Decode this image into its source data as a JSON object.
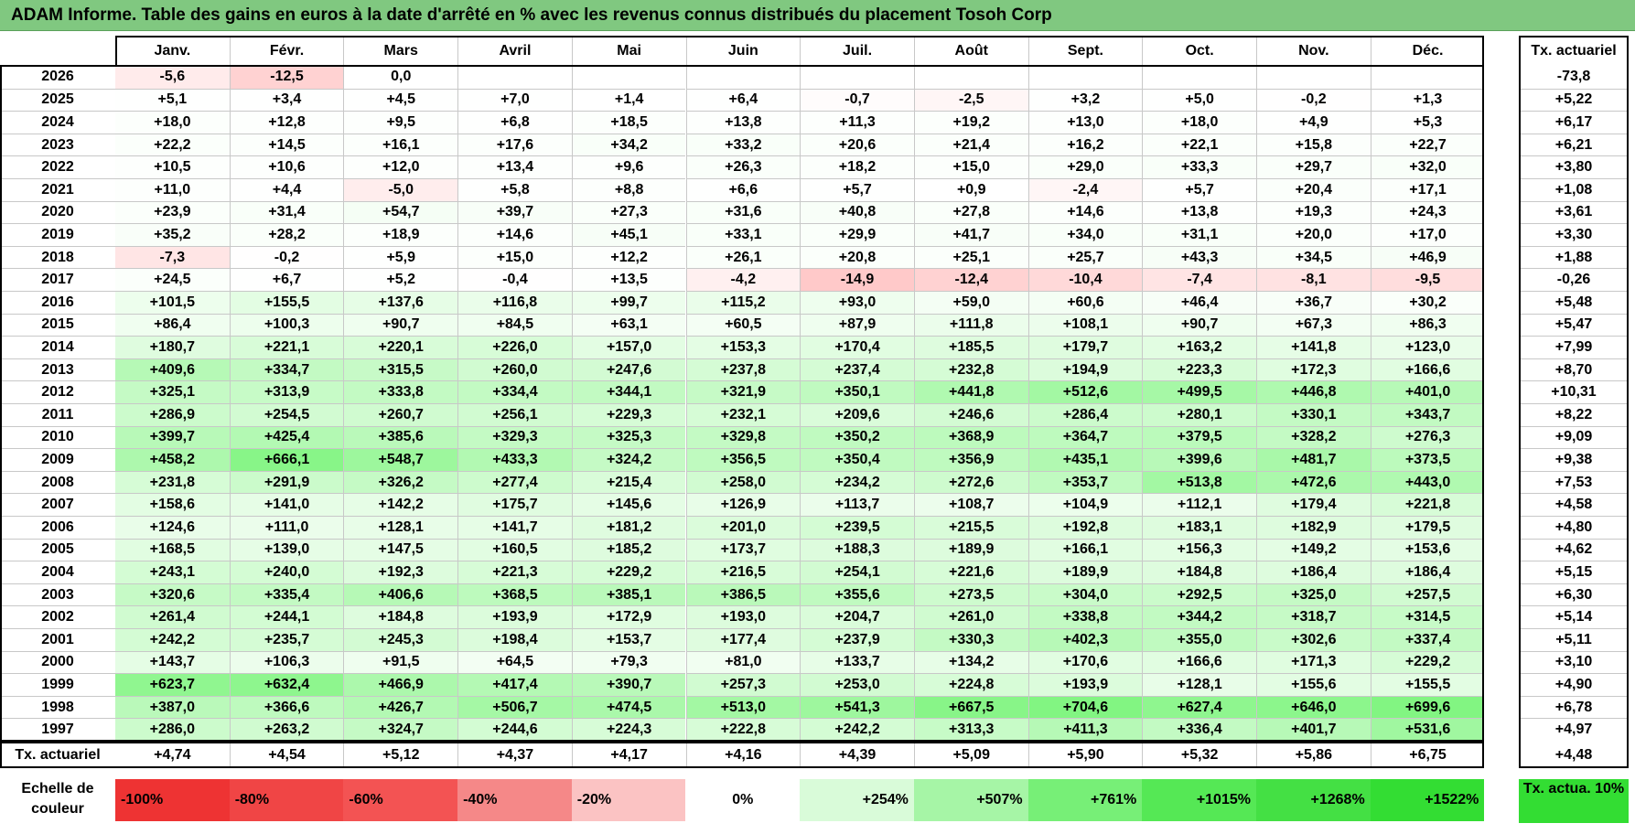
{
  "title": "ADAM Informe. Table des gains en euros à la date d'arrêté en % avec les revenus connus distribués du placement Tosoh Corp",
  "chart_data": {
    "type": "table",
    "columns": [
      "Janv.",
      "Févr.",
      "Mars",
      "Avril",
      "Mai",
      "Juin",
      "Juil.",
      "Août",
      "Sept.",
      "Oct.",
      "Nov.",
      "Déc."
    ],
    "total_column_label": "Tx. actuariel",
    "rows": [
      {
        "year": "2026",
        "values": [
          "-5,6",
          "-12,5",
          "0,0",
          "",
          "",
          "",
          "",
          "",
          "",
          "",
          "",
          ""
        ],
        "tx": "-73,8"
      },
      {
        "year": "2025",
        "values": [
          "+5,1",
          "+3,4",
          "+4,5",
          "+7,0",
          "+1,4",
          "+6,4",
          "-0,7",
          "-2,5",
          "+3,2",
          "+5,0",
          "-0,2",
          "+1,3"
        ],
        "tx": "+5,22"
      },
      {
        "year": "2024",
        "values": [
          "+18,0",
          "+12,8",
          "+9,5",
          "+6,8",
          "+18,5",
          "+13,8",
          "+11,3",
          "+19,2",
          "+13,0",
          "+18,0",
          "+4,9",
          "+5,3"
        ],
        "tx": "+6,17"
      },
      {
        "year": "2023",
        "values": [
          "+22,2",
          "+14,5",
          "+16,1",
          "+17,6",
          "+34,2",
          "+33,2",
          "+20,6",
          "+21,4",
          "+16,2",
          "+22,1",
          "+15,8",
          "+22,7"
        ],
        "tx": "+6,21"
      },
      {
        "year": "2022",
        "values": [
          "+10,5",
          "+10,6",
          "+12,0",
          "+13,4",
          "+9,6",
          "+26,3",
          "+18,2",
          "+15,0",
          "+29,0",
          "+33,3",
          "+29,7",
          "+32,0"
        ],
        "tx": "+3,80"
      },
      {
        "year": "2021",
        "values": [
          "+11,0",
          "+4,4",
          "-5,0",
          "+5,8",
          "+8,8",
          "+6,6",
          "+5,7",
          "+0,9",
          "-2,4",
          "+5,7",
          "+20,4",
          "+17,1"
        ],
        "tx": "+1,08"
      },
      {
        "year": "2020",
        "values": [
          "+23,9",
          "+31,4",
          "+54,7",
          "+39,7",
          "+27,3",
          "+31,6",
          "+40,8",
          "+27,8",
          "+14,6",
          "+13,8",
          "+19,3",
          "+24,3"
        ],
        "tx": "+3,61"
      },
      {
        "year": "2019",
        "values": [
          "+35,2",
          "+28,2",
          "+18,9",
          "+14,6",
          "+45,1",
          "+33,1",
          "+29,9",
          "+41,7",
          "+34,0",
          "+31,1",
          "+20,0",
          "+17,0"
        ],
        "tx": "+3,30"
      },
      {
        "year": "2018",
        "values": [
          "-7,3",
          "-0,2",
          "+5,9",
          "+15,0",
          "+12,2",
          "+26,1",
          "+20,8",
          "+25,1",
          "+25,7",
          "+43,3",
          "+34,5",
          "+46,9"
        ],
        "tx": "+1,88"
      },
      {
        "year": "2017",
        "values": [
          "+24,5",
          "+6,7",
          "+5,2",
          "-0,4",
          "+13,5",
          "-4,2",
          "-14,9",
          "-12,4",
          "-10,4",
          "-7,4",
          "-8,1",
          "-9,5"
        ],
        "tx": "-0,26"
      },
      {
        "year": "2016",
        "values": [
          "+101,5",
          "+155,5",
          "+137,6",
          "+116,8",
          "+99,7",
          "+115,2",
          "+93,0",
          "+59,0",
          "+60,6",
          "+46,4",
          "+36,7",
          "+30,2"
        ],
        "tx": "+5,48"
      },
      {
        "year": "2015",
        "values": [
          "+86,4",
          "+100,3",
          "+90,7",
          "+84,5",
          "+63,1",
          "+60,5",
          "+87,9",
          "+111,8",
          "+108,1",
          "+90,7",
          "+67,3",
          "+86,3"
        ],
        "tx": "+5,47"
      },
      {
        "year": "2014",
        "values": [
          "+180,7",
          "+221,1",
          "+220,1",
          "+226,0",
          "+157,0",
          "+153,3",
          "+170,4",
          "+185,5",
          "+179,7",
          "+163,2",
          "+141,8",
          "+123,0"
        ],
        "tx": "+7,99"
      },
      {
        "year": "2013",
        "values": [
          "+409,6",
          "+334,7",
          "+315,5",
          "+260,0",
          "+247,6",
          "+237,8",
          "+237,4",
          "+232,8",
          "+194,9",
          "+223,3",
          "+172,3",
          "+166,6"
        ],
        "tx": "+8,70"
      },
      {
        "year": "2012",
        "values": [
          "+325,1",
          "+313,9",
          "+333,8",
          "+334,4",
          "+344,1",
          "+321,9",
          "+350,1",
          "+441,8",
          "+512,6",
          "+499,5",
          "+446,8",
          "+401,0"
        ],
        "tx": "+10,31"
      },
      {
        "year": "2011",
        "values": [
          "+286,9",
          "+254,5",
          "+260,7",
          "+256,1",
          "+229,3",
          "+232,1",
          "+209,6",
          "+246,6",
          "+286,4",
          "+280,1",
          "+330,1",
          "+343,7"
        ],
        "tx": "+8,22"
      },
      {
        "year": "2010",
        "values": [
          "+399,7",
          "+425,4",
          "+385,6",
          "+329,3",
          "+325,3",
          "+329,8",
          "+350,2",
          "+368,9",
          "+364,7",
          "+379,5",
          "+328,2",
          "+276,3"
        ],
        "tx": "+9,09"
      },
      {
        "year": "2009",
        "values": [
          "+458,2",
          "+666,1",
          "+548,7",
          "+433,3",
          "+324,2",
          "+356,5",
          "+350,4",
          "+356,9",
          "+435,1",
          "+399,6",
          "+481,7",
          "+373,5"
        ],
        "tx": "+9,38"
      },
      {
        "year": "2008",
        "values": [
          "+231,8",
          "+291,9",
          "+326,2",
          "+277,4",
          "+215,4",
          "+258,0",
          "+234,2",
          "+272,6",
          "+353,7",
          "+513,8",
          "+472,6",
          "+443,0"
        ],
        "tx": "+7,53"
      },
      {
        "year": "2007",
        "values": [
          "+158,6",
          "+141,0",
          "+142,2",
          "+175,7",
          "+145,6",
          "+126,9",
          "+113,7",
          "+108,7",
          "+104,9",
          "+112,1",
          "+179,4",
          "+221,8"
        ],
        "tx": "+4,58"
      },
      {
        "year": "2006",
        "values": [
          "+124,6",
          "+111,0",
          "+128,1",
          "+141,7",
          "+181,2",
          "+201,0",
          "+239,5",
          "+215,5",
          "+192,8",
          "+183,1",
          "+182,9",
          "+179,5"
        ],
        "tx": "+4,80"
      },
      {
        "year": "2005",
        "values": [
          "+168,5",
          "+139,0",
          "+147,5",
          "+160,5",
          "+185,2",
          "+173,7",
          "+188,3",
          "+189,9",
          "+166,1",
          "+156,3",
          "+149,2",
          "+153,6"
        ],
        "tx": "+4,62"
      },
      {
        "year": "2004",
        "values": [
          "+243,1",
          "+240,0",
          "+192,3",
          "+221,3",
          "+229,2",
          "+216,5",
          "+254,1",
          "+221,6",
          "+189,9",
          "+184,8",
          "+186,4",
          "+186,4"
        ],
        "tx": "+5,15"
      },
      {
        "year": "2003",
        "values": [
          "+320,6",
          "+335,4",
          "+406,6",
          "+368,5",
          "+385,1",
          "+386,5",
          "+355,6",
          "+273,5",
          "+304,0",
          "+292,5",
          "+325,0",
          "+257,5"
        ],
        "tx": "+6,30"
      },
      {
        "year": "2002",
        "values": [
          "+261,4",
          "+244,1",
          "+184,8",
          "+193,9",
          "+172,9",
          "+193,0",
          "+204,7",
          "+261,0",
          "+338,8",
          "+344,2",
          "+318,7",
          "+314,5"
        ],
        "tx": "+5,14"
      },
      {
        "year": "2001",
        "values": [
          "+242,2",
          "+235,7",
          "+245,3",
          "+198,4",
          "+153,7",
          "+177,4",
          "+237,9",
          "+330,3",
          "+402,3",
          "+355,0",
          "+302,6",
          "+337,4"
        ],
        "tx": "+5,11"
      },
      {
        "year": "2000",
        "values": [
          "+143,7",
          "+106,3",
          "+91,5",
          "+64,5",
          "+79,3",
          "+81,0",
          "+133,7",
          "+134,2",
          "+170,6",
          "+166,6",
          "+171,3",
          "+229,2"
        ],
        "tx": "+3,10"
      },
      {
        "year": "1999",
        "values": [
          "+623,7",
          "+632,4",
          "+466,9",
          "+417,4",
          "+390,7",
          "+257,3",
          "+253,0",
          "+224,8",
          "+193,9",
          "+128,1",
          "+155,6",
          "+155,5"
        ],
        "tx": "+4,90"
      },
      {
        "year": "1998",
        "values": [
          "+387,0",
          "+366,6",
          "+426,7",
          "+506,7",
          "+474,5",
          "+513,0",
          "+541,3",
          "+667,5",
          "+704,6",
          "+627,4",
          "+646,0",
          "+699,6"
        ],
        "tx": "+6,78"
      },
      {
        "year": "1997",
        "values": [
          "+286,0",
          "+263,2",
          "+324,7",
          "+244,6",
          "+224,3",
          "+222,8",
          "+242,2",
          "+313,3",
          "+411,3",
          "+336,4",
          "+401,7",
          "+531,6"
        ],
        "tx": "+4,97"
      }
    ],
    "footer_row": {
      "label": "Tx. actuariel",
      "values": [
        "+4,74",
        "+4,54",
        "+5,12",
        "+4,37",
        "+4,17",
        "+4,16",
        "+4,39",
        "+5,09",
        "+5,90",
        "+5,32",
        "+5,86",
        "+6,75"
      ],
      "tx": "+4,48"
    },
    "color_scale": {
      "label": "Echelle de couleur",
      "stops": [
        {
          "label": "-100%",
          "color": "#ee3333"
        },
        {
          "label": "-80%",
          "color": "#f04545"
        },
        {
          "label": "-60%",
          "color": "#f35353"
        },
        {
          "label": "-40%",
          "color": "#f58888"
        },
        {
          "label": "-20%",
          "color": "#fbc3c3"
        },
        {
          "label": "0%",
          "color": "#ffffff"
        },
        {
          "label": "+254%",
          "color": "#d9fbd9"
        },
        {
          "label": "+507%",
          "color": "#a6f5a6"
        },
        {
          "label": "+761%",
          "color": "#77ef77"
        },
        {
          "label": "+1015%",
          "color": "#55e855"
        },
        {
          "label": "+1268%",
          "color": "#44e044"
        },
        {
          "label": "+1522%",
          "color": "#33dd33"
        }
      ],
      "tx_legend": "Tx. actua. 10%"
    }
  }
}
